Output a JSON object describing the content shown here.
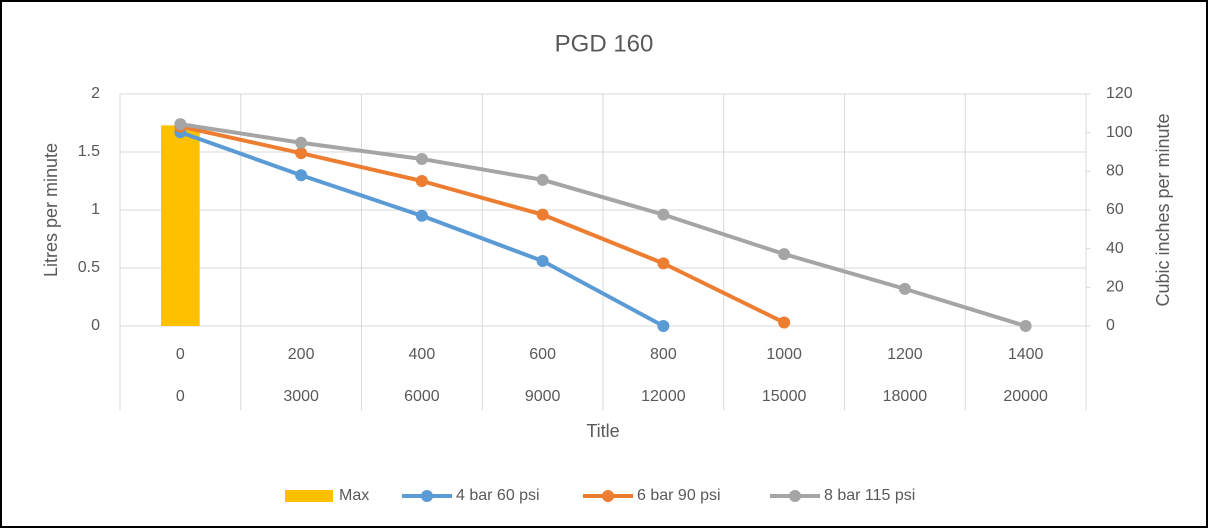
{
  "chart_data": {
    "type": "line",
    "title": "PGD 160",
    "x_label": "Title",
    "y_label": "Litres per minute",
    "y2_label": "Cubic inches per minute",
    "categories": [
      0,
      200,
      400,
      600,
      800,
      1000,
      1200,
      1400
    ],
    "secondary_categories": [
      0,
      3000,
      6000,
      9000,
      12000,
      15000,
      18000,
      20000
    ],
    "ylim": [
      0,
      2
    ],
    "yticks": [
      0,
      0.5,
      1,
      1.5,
      2
    ],
    "y2lim": [
      0,
      120
    ],
    "y2ticks": [
      0,
      20,
      40,
      60,
      80,
      100,
      120
    ],
    "grid": true,
    "legend": "bottom",
    "series": [
      {
        "name": "Max",
        "type": "bar",
        "color": "#FFC000",
        "values": [
          1.73,
          null,
          null,
          null,
          null,
          null,
          null,
          null
        ]
      },
      {
        "name": "4 bar 60 psi",
        "type": "line",
        "color": "#5B9BD5",
        "values": [
          1.67,
          1.3,
          0.95,
          0.56,
          0,
          null,
          null,
          null
        ]
      },
      {
        "name": "6 bar 90 psi",
        "type": "line",
        "color": "#ED7D31",
        "values": [
          1.72,
          1.49,
          1.25,
          0.96,
          0.54,
          0.03,
          null,
          null
        ]
      },
      {
        "name": "8 bar 115 psi",
        "type": "line",
        "color": "#A5A5A5",
        "values": [
          1.74,
          1.58,
          1.44,
          1.26,
          0.96,
          0.62,
          0.32,
          0
        ]
      }
    ]
  }
}
